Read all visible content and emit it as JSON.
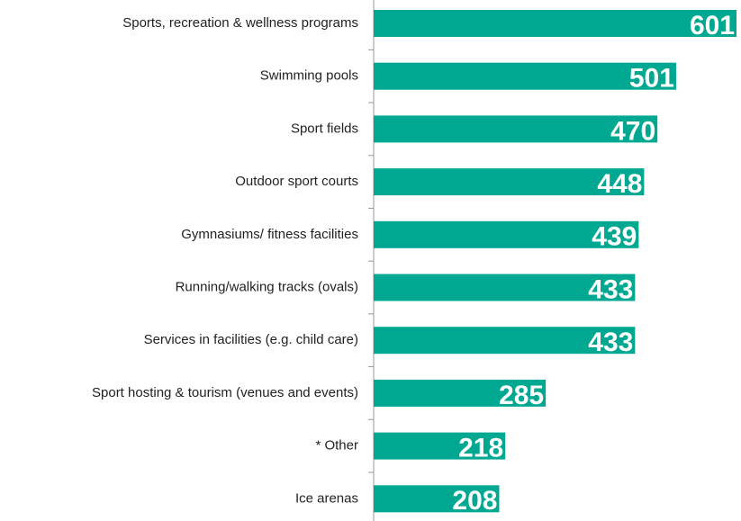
{
  "chart_data": {
    "type": "bar",
    "orientation": "horizontal",
    "categories": [
      "Sports, recreation & wellness programs",
      "Swimming pools",
      "Sport fields",
      "Outdoor sport courts",
      "Gymnasiums/ fitness facilities",
      "Running/walking tracks (ovals)",
      "Services in facilities (e.g. child care)",
      "Sport hosting & tourism (venues and events)",
      "* Other",
      "Ice arenas"
    ],
    "values": [
      601,
      501,
      470,
      448,
      439,
      433,
      433,
      285,
      218,
      208
    ],
    "color": "#00a891",
    "xlim": [
      0,
      601
    ]
  }
}
